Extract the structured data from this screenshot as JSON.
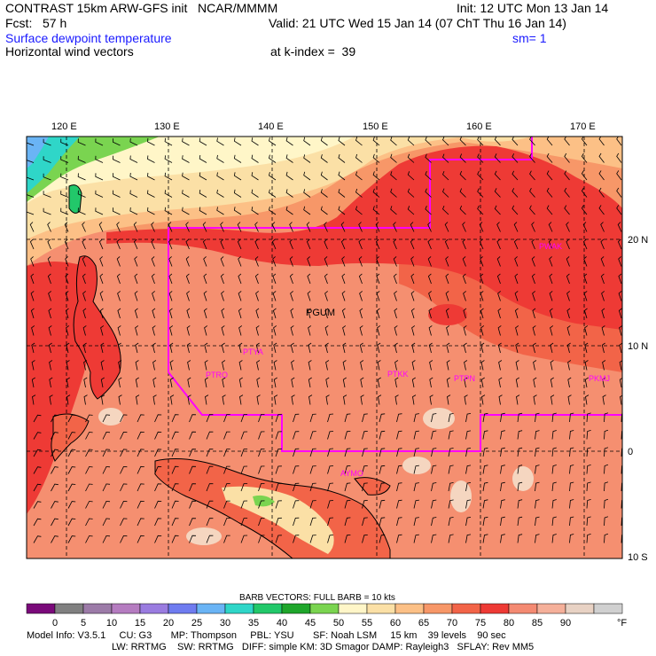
{
  "header": {
    "title": "CONTRAST 15km ARW-GFS init   NCAR/MMMM",
    "init": "Init: 12 UTC Mon 13 Jan 14",
    "fcst": "Fcst:   57 h",
    "valid": "Valid: 21 UTC Wed 15 Jan 14 (07 ChT Thu 16 Jan 14)",
    "field1": "Surface dewpoint temperature",
    "smoothing": "sm= 1",
    "field2": "Horizontal wind vectors",
    "kindex": "at k-index =  39"
  },
  "map": {
    "lon_labels": [
      "120 E",
      "130 E",
      "140 E",
      "150 E",
      "160 E",
      "170 E"
    ],
    "lat_labels": [
      "20 N",
      "10 N",
      "0",
      "10 S"
    ],
    "stations": [
      "PGUM",
      "PTYA",
      "PTRO",
      "PTKK",
      "PTPN",
      "PKMJ",
      "PWAK",
      "AYMO"
    ]
  },
  "colorbar": {
    "caption": "BARB VECTORS:  FULL BARB = 10 kts",
    "ticks": [
      "0",
      "5",
      "10",
      "15",
      "20",
      "25",
      "30",
      "35",
      "40",
      "45",
      "50",
      "55",
      "60",
      "65",
      "70",
      "75",
      "80",
      "85",
      "90"
    ],
    "unit": "°F",
    "colors": [
      "#7a0a7a",
      "#808080",
      "#9c7ba8",
      "#b57cc0",
      "#9a7ce0",
      "#6f7cf0",
      "#6ab4f5",
      "#2fd6c8",
      "#22c86a",
      "#1fa62b",
      "#7ad450",
      "#fff6c8",
      "#fbe0a6",
      "#fcc086",
      "#f79768",
      "#f26448",
      "#ee3a35",
      "#f48a72",
      "#f5b09a",
      "#e8d2c4",
      "#d0d0d0"
    ]
  },
  "footer": {
    "line1": "Model Info: V3.5.1     CU: G3       MP: Thompson     PBL: YSU       SF: Noah LSM     15 km    39 levels    90 sec",
    "line2": "LW: RRTMG    SW: RRTMG   DIFF: simple KM: 3D Smagor DAMP: Rayleigh3   SFLAY: Rev MM5"
  }
}
